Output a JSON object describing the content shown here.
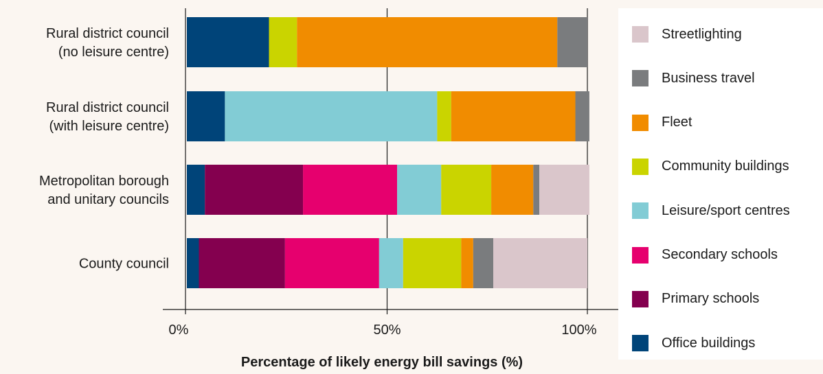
{
  "chart_data": {
    "type": "bar",
    "orientation": "horizontal",
    "stacked": true,
    "categories": [
      "Rural district council\n(no leisure centre)",
      "Rural district council\n(with leisure centre)",
      "Metropolitan borough\nand unitary councils",
      "County council"
    ],
    "series": [
      {
        "name": "Office buildings",
        "color": "#004479",
        "values": [
          20.5,
          9.5,
          4.5,
          3
        ]
      },
      {
        "name": "Primary schools",
        "color": "#84004f",
        "values": [
          0,
          0,
          24.5,
          21.5
        ]
      },
      {
        "name": "Secondary schools",
        "color": "#e6006e",
        "values": [
          0,
          0,
          23.5,
          23.5
        ]
      },
      {
        "name": "Leisure/sport centres",
        "color": "#82ccd5",
        "values": [
          0,
          53,
          11,
          6
        ]
      },
      {
        "name": "Community buildings",
        "color": "#cad400",
        "values": [
          7,
          3.5,
          12.5,
          14.5
        ]
      },
      {
        "name": "Fleet",
        "color": "#f18c00",
        "values": [
          65,
          31,
          10.5,
          3
        ]
      },
      {
        "name": "Business travel",
        "color": "#7a7c7e",
        "values": [
          7.5,
          3.5,
          1.5,
          5
        ]
      },
      {
        "name": "Streetlighting",
        "color": "#dac6cb",
        "values": [
          0,
          0,
          12.5,
          23.5
        ]
      }
    ],
    "xticks": [
      "0%",
      "50%",
      "100%"
    ],
    "xlim": [
      0,
      100
    ],
    "xlabel": "Percentage of likely energy bill savings (%)",
    "grid": "vertical at 50% and 100%",
    "legend_placement": "right",
    "legend_order": [
      "Streetlighting",
      "Business travel",
      "Fleet",
      "Community buildings",
      "Leisure/sport centres",
      "Secondary schools",
      "Primary schools",
      "Office buildings"
    ]
  }
}
